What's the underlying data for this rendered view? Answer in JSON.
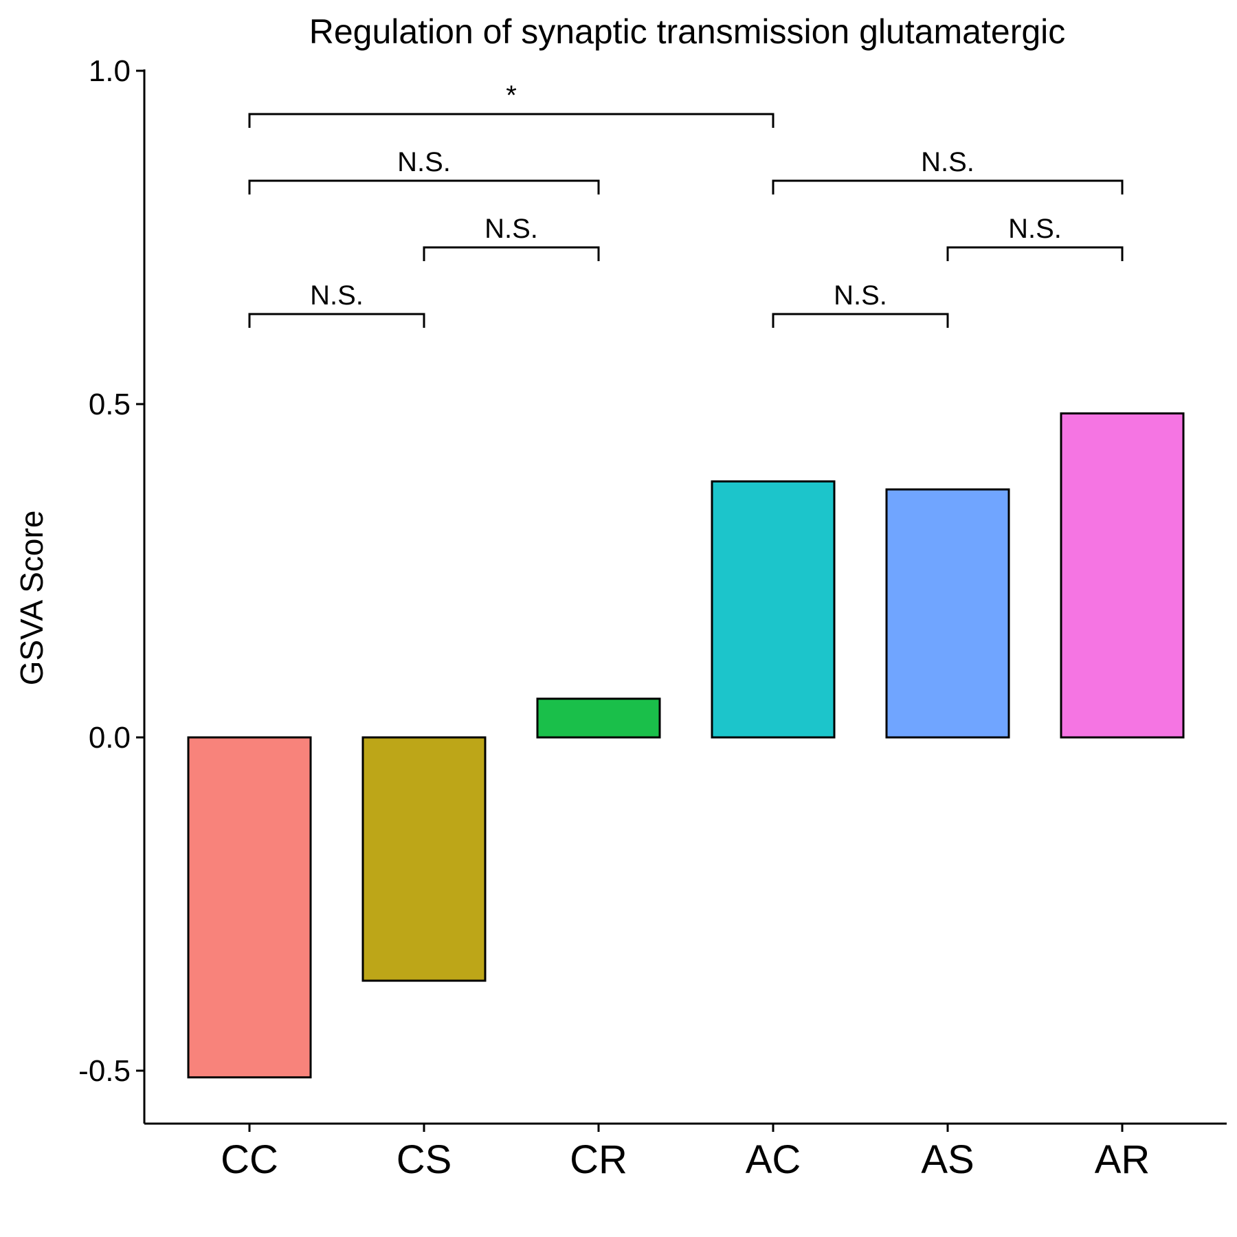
{
  "chart_data": {
    "type": "bar",
    "title": "Regulation of synaptic transmission glutamatergic",
    "xlabel": "",
    "ylabel": "GSVA Score",
    "ylim": [
      -0.58,
      1.0
    ],
    "yticks": [
      "-0.5",
      "0.0",
      "0.5",
      "1.0"
    ],
    "categories": [
      "CC",
      "CS",
      "CR",
      "AC",
      "AS",
      "AR"
    ],
    "values": [
      -0.51,
      -0.365,
      0.058,
      0.384,
      0.372,
      0.486
    ],
    "colors": [
      "#F8837B",
      "#BDA618",
      "#1ABF4A",
      "#1CC5CB",
      "#70A5FF",
      "#F575E3"
    ],
    "grid": false,
    "legend": "none",
    "comparisons": [
      {
        "from": 0,
        "to": 1,
        "y": 0.635,
        "label": "N.S."
      },
      {
        "from": 1,
        "to": 2,
        "y": 0.735,
        "label": "N.S."
      },
      {
        "from": 0,
        "to": 2,
        "y": 0.835,
        "label": "N.S."
      },
      {
        "from": 0,
        "to": 3,
        "y": 0.935,
        "label": "*"
      },
      {
        "from": 3,
        "to": 4,
        "y": 0.635,
        "label": "N.S."
      },
      {
        "from": 4,
        "to": 5,
        "y": 0.735,
        "label": "N.S."
      },
      {
        "from": 3,
        "to": 5,
        "y": 0.835,
        "label": "N.S."
      }
    ]
  }
}
